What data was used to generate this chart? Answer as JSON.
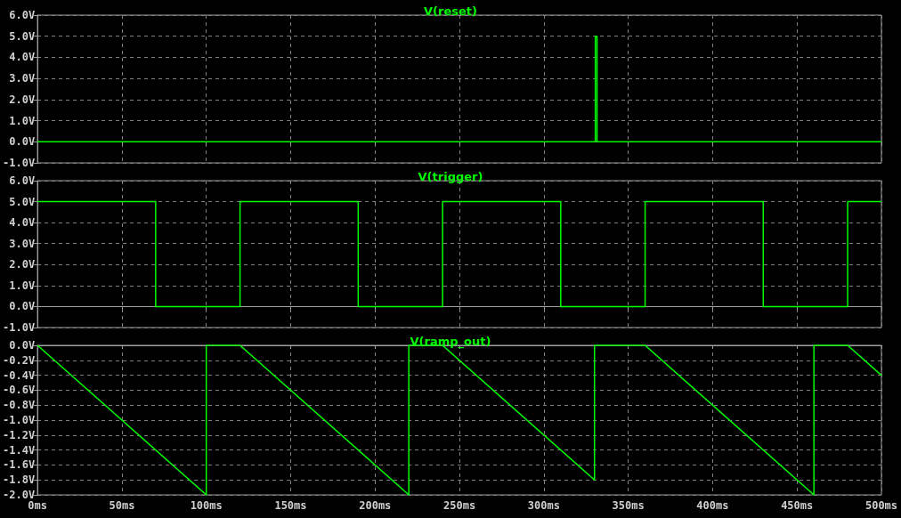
{
  "chart_data": [
    {
      "type": "line",
      "title": "V(reset)",
      "xlim": [
        0,
        500
      ],
      "xticks": [
        0,
        50,
        100,
        150,
        200,
        250,
        300,
        350,
        400,
        450,
        500
      ],
      "ylim": [
        -1,
        6
      ],
      "yticks": [
        {
          "value": -1,
          "label": "-1.0V"
        },
        {
          "value": 0,
          "label": "0.0V"
        },
        {
          "value": 1,
          "label": "1.0V"
        },
        {
          "value": 2,
          "label": "2.0V"
        },
        {
          "value": 3,
          "label": "3.0V"
        },
        {
          "value": 4,
          "label": "4.0V"
        },
        {
          "value": 5,
          "label": "5.0V"
        },
        {
          "value": 6,
          "label": "6.0V"
        }
      ],
      "grid": true,
      "tick_labels": "y",
      "series": [
        {
          "color": "#00ff00",
          "x": [
            0,
            330.5,
            330.5,
            331.5,
            331.5,
            500
          ],
          "values": [
            0,
            0,
            5,
            5,
            0,
            0
          ]
        }
      ]
    },
    {
      "type": "line",
      "title": "V(trigger)",
      "xlim": [
        0,
        500
      ],
      "xticks": [
        0,
        50,
        100,
        150,
        200,
        250,
        300,
        350,
        400,
        450,
        500
      ],
      "ylim": [
        -1,
        6
      ],
      "yticks": [
        {
          "value": -1,
          "label": "-1.0V"
        },
        {
          "value": 0,
          "label": "0.0V"
        },
        {
          "value": 1,
          "label": "1.0V"
        },
        {
          "value": 2,
          "label": "2.0V"
        },
        {
          "value": 3,
          "label": "3.0V"
        },
        {
          "value": 4,
          "label": "4.0V"
        },
        {
          "value": 5,
          "label": "5.0V"
        },
        {
          "value": 6,
          "label": "6.0V"
        }
      ],
      "grid": true,
      "tick_labels": "y",
      "series": [
        {
          "color": "#00ff00",
          "x": [
            0,
            70,
            70,
            120,
            120,
            190,
            190,
            240,
            240,
            310,
            310,
            360,
            360,
            430,
            430,
            480,
            480,
            500
          ],
          "values": [
            5,
            5,
            0,
            0,
            5,
            5,
            0,
            0,
            5,
            5,
            0,
            0,
            5,
            5,
            0,
            0,
            5,
            5
          ]
        }
      ]
    },
    {
      "type": "line",
      "title": "V(ramp_out)",
      "xlim": [
        0,
        500
      ],
      "xticks": [
        {
          "value": 0,
          "label": "0ms"
        },
        {
          "value": 50,
          "label": "50ms"
        },
        {
          "value": 100,
          "label": "100ms"
        },
        {
          "value": 150,
          "label": "150ms"
        },
        {
          "value": 200,
          "label": "200ms"
        },
        {
          "value": 250,
          "label": "250ms"
        },
        {
          "value": 300,
          "label": "300ms"
        },
        {
          "value": 350,
          "label": "350ms"
        },
        {
          "value": 400,
          "label": "400ms"
        },
        {
          "value": 450,
          "label": "450ms"
        },
        {
          "value": 500,
          "label": "500ms"
        }
      ],
      "ylim": [
        -2,
        0
      ],
      "yticks": [
        {
          "value": -2,
          "label": "-2.0V"
        },
        {
          "value": -1.8,
          "label": "-1.8V"
        },
        {
          "value": -1.6,
          "label": "-1.6V"
        },
        {
          "value": -1.4,
          "label": "-1.4V"
        },
        {
          "value": -1.2,
          "label": "-1.2V"
        },
        {
          "value": -1,
          "label": "-1.0V"
        },
        {
          "value": -0.8,
          "label": "-0.8V"
        },
        {
          "value": -0.6,
          "label": "-0.6V"
        },
        {
          "value": -0.4,
          "label": "-0.4V"
        },
        {
          "value": -0.2,
          "label": "-0.2V"
        },
        {
          "value": 0,
          "label": "0.0V"
        }
      ],
      "grid": true,
      "series": [
        {
          "color": "#00ff00",
          "x": [
            0,
            100,
            100,
            120,
            220,
            220,
            240,
            330,
            330,
            360,
            460,
            460,
            480,
            500
          ],
          "values": [
            0,
            -2,
            0,
            0,
            -2,
            0,
            0,
            -1.8,
            0,
            0,
            -2,
            0,
            0,
            -0.4
          ]
        }
      ]
    }
  ]
}
